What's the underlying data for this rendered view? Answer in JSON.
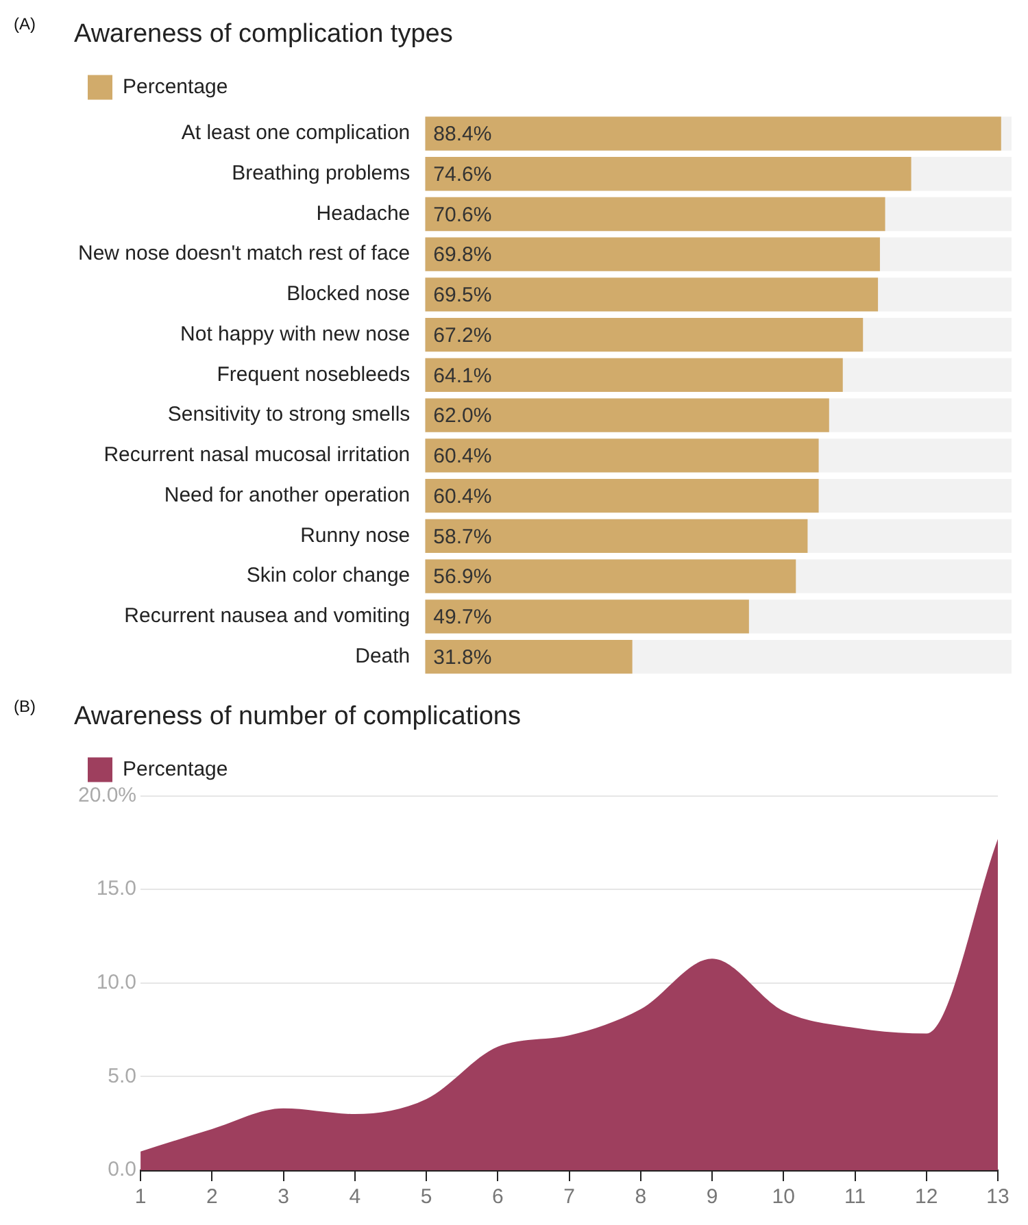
{
  "chart_data": [
    {
      "type": "bar",
      "orientation": "horizontal",
      "title": "Awareness of complication types",
      "annotations": [
        "(A)"
      ],
      "legend": "top left",
      "categories": [
        "At least one complication",
        "Breathing problems",
        "Headache",
        "New nose doesn't match rest of face",
        "Blocked nose",
        "Not happy with new nose",
        "Frequent nosebleeds",
        "Sensitivity to strong smells",
        "Recurrent nasal mucosal irritation",
        "Need for another operation",
        "Runny nose",
        "Skin color change",
        "Recurrent nausea and vomiting",
        "Death"
      ],
      "series": [
        {
          "name": "Percentage",
          "color": "#d1ab6b",
          "values": [
            88.4,
            74.6,
            70.6,
            69.8,
            69.5,
            67.2,
            64.1,
            62.0,
            60.4,
            60.4,
            58.7,
            56.9,
            49.7,
            31.8
          ],
          "value_labels": [
            "88.4%",
            "74.6%",
            "70.6%",
            "69.8%",
            "69.5%",
            "67.2%",
            "64.1%",
            "62.0%",
            "60.4%",
            "60.4%",
            "58.7%",
            "56.9%",
            "49.7%",
            "31.8%"
          ]
        }
      ]
    },
    {
      "type": "area",
      "title": "Awareness of number of complications",
      "annotations": [
        "(B)"
      ],
      "legend": "top left",
      "grid": "y",
      "x": [
        1,
        2,
        3,
        4,
        5,
        6,
        7,
        8,
        9,
        10,
        11,
        12,
        13
      ],
      "xlim": [
        1,
        13
      ],
      "xticks": [
        1,
        2,
        3,
        4,
        5,
        6,
        7,
        8,
        9,
        10,
        11,
        12,
        13
      ],
      "ylim": [
        0,
        20
      ],
      "yticks": [
        {
          "value": 0,
          "label": "0.0"
        },
        {
          "value": 5,
          "label": "5.0"
        },
        {
          "value": 10,
          "label": "10.0"
        },
        {
          "value": 15,
          "label": "15.0"
        },
        {
          "value": 20,
          "label": "20.0%"
        }
      ],
      "series": [
        {
          "name": "Percentage",
          "color": "#9e3f5e",
          "values": [
            1.0,
            2.2,
            3.3,
            3.0,
            3.8,
            6.6,
            7.2,
            8.6,
            11.3,
            8.5,
            7.6,
            7.3,
            17.7
          ]
        }
      ]
    }
  ]
}
